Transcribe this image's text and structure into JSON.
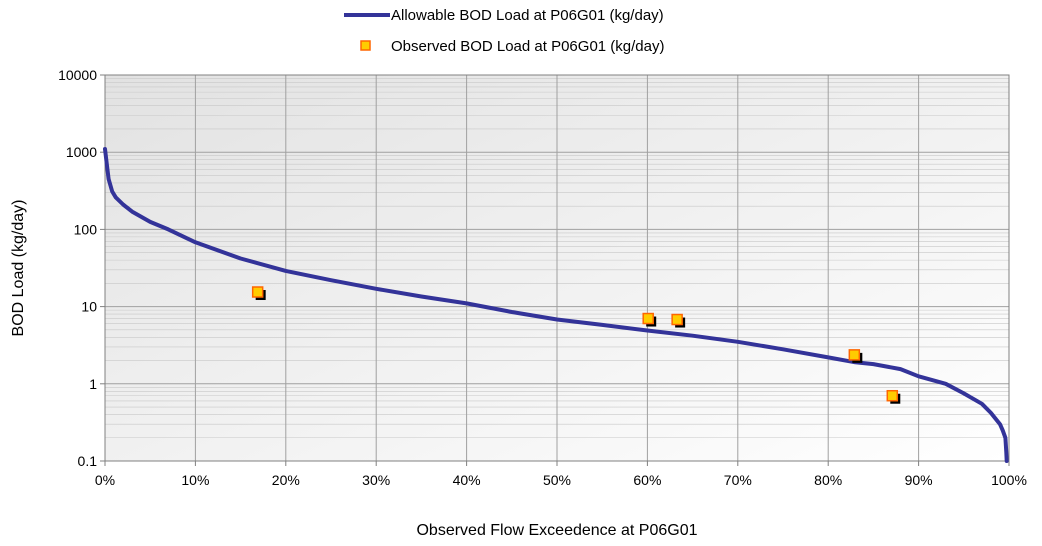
{
  "chart_data": {
    "type": "line",
    "xlabel": "Observed Flow Exceedence at P06G01",
    "ylabel": "BOD Load (kg/day)",
    "xlim": [
      0,
      1
    ],
    "ylim": [
      0.1,
      10000
    ],
    "yscale": "log",
    "grid": true,
    "legend_position": "top-center",
    "x_tick_labels": [
      "0%",
      "10%",
      "20%",
      "30%",
      "40%",
      "50%",
      "60%",
      "70%",
      "80%",
      "90%",
      "100%"
    ],
    "y_tick_labels": [
      "0.1",
      "1",
      "10",
      "100",
      "1000",
      "10000"
    ],
    "series": [
      {
        "name": "Allowable BOD Load at P06G01 (kg/day)",
        "kind": "line",
        "color": "#333399",
        "x": [
          0.0,
          0.002,
          0.004,
          0.008,
          0.012,
          0.02,
          0.03,
          0.05,
          0.07,
          0.1,
          0.15,
          0.2,
          0.25,
          0.3,
          0.35,
          0.4,
          0.45,
          0.5,
          0.55,
          0.6,
          0.65,
          0.7,
          0.75,
          0.8,
          0.83,
          0.85,
          0.88,
          0.9,
          0.93,
          0.95,
          0.97,
          0.98,
          0.99,
          0.993,
          0.996,
          0.997,
          0.9975
        ],
        "y": [
          1100,
          700,
          450,
          310,
          260,
          210,
          170,
          125,
          100,
          68,
          42,
          29,
          22,
          17,
          13.5,
          11,
          8.5,
          6.8,
          5.8,
          4.9,
          4.2,
          3.5,
          2.8,
          2.2,
          1.9,
          1.8,
          1.55,
          1.25,
          1.0,
          0.75,
          0.55,
          0.42,
          0.3,
          0.25,
          0.2,
          0.13,
          0.1
        ]
      },
      {
        "name": "Observed BOD Load at P06G01 (kg/day)",
        "kind": "scatter",
        "color": "#FFCC00",
        "edge_color": "#FF6600",
        "x": [
          0.17,
          0.602,
          0.634,
          0.83,
          0.872
        ],
        "y": [
          15,
          6.8,
          6.6,
          2.3,
          0.68
        ]
      }
    ]
  }
}
